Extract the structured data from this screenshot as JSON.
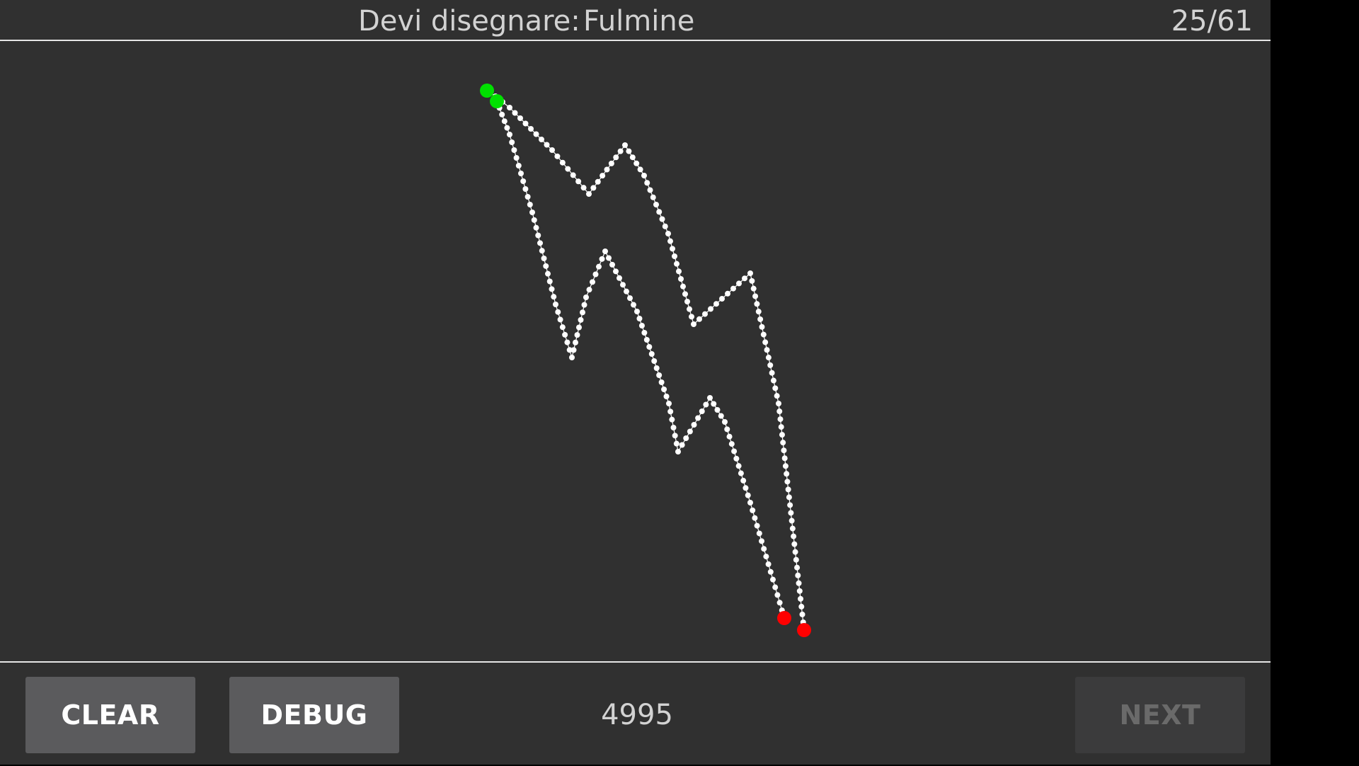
{
  "header": {
    "prompt_label": "Devi disegnare:",
    "prompt_word": "Fulmine",
    "progress": "25/61"
  },
  "footer": {
    "clear_label": "CLEAR",
    "debug_label": "DEBUG",
    "score": "4995",
    "next_label": "NEXT",
    "next_enabled": false
  },
  "colors": {
    "background": "#303030",
    "stroke_point": "#ffffff",
    "start_point": "#00e000",
    "end_point": "#ff0000"
  }
}
